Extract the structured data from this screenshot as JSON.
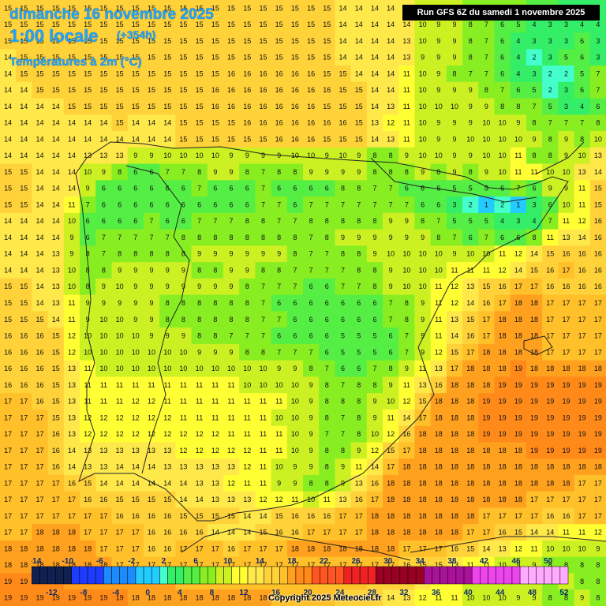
{
  "header": {
    "date": "dimanche 16 novembre 2025",
    "hour": "1:00 locale",
    "lead": "(+354h)",
    "variable": "Températures à 2m (°C)",
    "run": "Run GFS 6Z du samedi 1 novembre 2025"
  },
  "footer": {
    "copyright": "Copyright 2025 Meteociel.fr"
  },
  "map": {
    "region": "Iberian Peninsula",
    "grid_cols": 38,
    "grid_rows": 37,
    "grid_values": [
      "15 15 15 15 15 15 15 15 15 15 15 15 15 15 15 15 15 15 15 15 15 14 14 14 14 14 9 9 9 8 8 7 7 6 5 4 4 4",
      "15 15 15 15 15 15 15 15 15 15 15 15 15 15 15 15 15 15 15 15 15 14 14 14 14 14 10 9 9 8 7 6 5 4 3 3 4 4",
      "15 15 15 15 15 15 15 15 15 15 15 15 15 15 15 15 15 15 15 15 15 14 14 14 14 13 10 9 9 8 7 6 4 3 3 3 6 3",
      "14 15 15 15 15 15 15 15 15 15 15 15 15 15 15 15 15 15 15 15 15 14 14 14 14 13 9 9 9 8 7 6 4 2 3 5 6 3",
      "14 15 15 15 15 15 15 15 15 15 15 15 15 15 16 16 16 16 16 16 15 15 14 14 14 11 10 9 8 7 7 6 4 3 2 2 5 7",
      "14 14 15 15 15 15 15 15 15 15 15 15 15 16 16 16 16 16 16 16 16 15 15 14 14 11 10 9 9 9 8 7 6 5 2 3 6 7",
      "14 14 14 14 15 15 15 15 15 15 15 15 15 16 16 16 16 16 16 16 15 15 15 14 13 11 10 10 10 9 9 8 8 7 5 3 4 6",
      "14 14 14 14 14 14 14 15 14 14 14 15 15 15 15 16 16 16 16 16 16 16 15 13 12 11 10 9 9 9 10 10 9 8 7 7 7 8",
      "14 14 14 14 14 14 14 14 14 14 14 15 15 15 15 15 15 16 16 16 15 15 15 14 13 11 10 9 9 10 10 10 10 9 8 9 8 10",
      "14 14 14 14 14 13 13 13 9 9 10 10 10 10 9 9 9 9 10 10 9 10 9 8 8 9 10 10 9 9 10 10 11 8 8 9 10 13",
      "15 15 14 14 14 10 9 8 6 6 7 7 8 9 9 8 7 8 8 9 9 9 9 8 8 8 9 8 9 8 9 10 11 11 10 10 13 14",
      "15 15 14 14 14 9 6 6 6 6 6 6 7 6 6 6 7 6 6 6 6 8 8 7 7 6 6 6 5 5 5 6 7 6 9 9 11 15",
      "15 15 14 14 11 7 6 6 6 6 6 6 6 6 6 6 7 7 6 7 7 7 7 7 7 7 6 6 3 2 1 2 1 3 6 10 11 15",
      "14 14 14 14 10 6 6 6 6 7 6 6 7 7 7 8 8 7 7 8 8 8 8 8 9 9 8 7 5 5 5 4 3 4 7 11 12 16",
      "14 14 14 14 9 6 7 7 7 7 7 8 8 8 8 8 8 8 8 7 8 9 9 9 9 9 9 8 7 6 7 6 6 8 11 13 14 16",
      "14 14 14 13 9 8 7 8 8 8 8 8 9 9 9 9 9 9 8 7 7 8 8 9 10 10 10 10 9 10 10 11 12 14 15 16 16 16",
      "14 14 14 13 10 8 8 9 9 9 9 9 8 8 9 9 8 8 7 7 7 7 8 8 9 10 10 10 11 11 11 12 14 15 16 17 16 16",
      "15 15 14 13 10 8 9 10 9 9 9 9 9 9 9 8 7 7 7 6 6 7 7 8 9 10 10 11 12 13 15 16 17 17 16 16 16 16",
      "15 15 14 13 11 9 9 9 9 9 8 8 8 8 8 8 7 6 6 6 6 6 6 6 7 8 9 11 12 14 16 17 18 18 17 17 17 17",
      "15 15 15 14 11 9 10 10 9 9 8 8 8 8 8 8 7 7 6 6 6 6 6 6 7 8 9 11 13 15 17 18 18 18 17 17 17 17",
      "16 16 16 15 12 10 10 10 10 9 9 9 8 8 7 7 7 6 6 6 6 5 5 5 6 7 9 11 14 16 17 18 18 18 17 17 17 17",
      "16 16 16 15 12 10 10 10 10 10 10 10 9 9 9 8 8 7 7 7 6 5 5 5 6 7 9 12 15 17 18 18 18 18 17 17 17 17",
      "16 16 16 15 13 11 10 10 10 10 10 10 10 10 10 10 10 9 9 8 7 6 6 7 8 9 11 13 17 18 18 18 19 18 18 18 18 18",
      "16 16 16 15 13 11 11 11 11 11 11 11 11 11 11 10 10 10 10 9 8 7 8 8 9 11 13 16 18 18 18 19 19 19 19 19 19 19",
      "17 17 16 15 13 11 11 11 12 12 11 11 11 11 11 11 11 11 10 9 8 8 8 9 10 12 15 18 18 18 19 19 19 19 19 19 19 19",
      "17 17 17 15 13 12 12 12 12 12 12 11 11 11 11 11 11 10 10 9 8 7 8 9 11 14 17 18 18 18 19 19 19 19 19 19 19 19",
      "17 17 17 16 13 12 12 12 12 12 12 12 12 12 11 11 11 11 10 9 7 7 8 10 12 16 18 18 18 18 19 19 19 19 19 19 19 19",
      "17 17 17 16 14 13 13 13 13 13 13 12 12 12 12 12 11 11 10 9 8 8 9 12 15 17 18 18 18 18 18 18 18 19 19 19 19 19",
      "17 17 17 16 14 13 13 14 14 14 13 13 13 13 13 12 11 10 9 9 8 9 11 14 17 18 18 18 18 18 18 18 18 18 18 18 18 18",
      "17 17 17 17 16 15 14 14 14 14 14 14 13 13 12 11 11 9 9 8 8 9 13 16 18 18 18 18 18 18 18 18 18 18 18 18 17 17",
      "17 17 17 17 17 16 16 15 15 15 15 14 14 13 13 13 12 12 11 10 11 13 16 17 18 18 18 18 18 18 18 18 18 17 17 17 17 17",
      "17 17 17 17 17 17 17 16 16 16 16 15 15 15 15 14 14 15 16 16 16 17 17 18 18 18 18 18 18 18 17 17 17 17 16 16 17 17",
      "17 17 18 18 18 17 17 17 17 16 16 16 16 14 14 14 15 16 16 17 17 17 17 18 18 18 18 18 18 17 17 16 15 14 14 11 11 12",
      "18 18 18 18 18 18 17 17 17 16 16 17 17 17 16 17 17 17 18 18 18 18 18 18 18 17 17 17 16 15 14 13 12 11 10 10 10 9",
      "18 18 18 18 18 18 18 17 17 17 17 17 17 17 17 17 17 17 17 17 17 17 17 17 17 16 15 15 13 11 11 10 9 9 8 8 8 8",
      "19 19 19 19 18 18 18 18 18 18 18 17 17 17 17 17 17 17 17 17 17 17 17 16 15 15 14 12 11 10 10 10 9 9 8 9 8 8",
      "19 19 19 19 19 19 19 19 18 18 18 18 18 18 18 18 18 17 17 17 17 16 16 15 14 13 12 11 11 10 10 10 9 9 8 8 9 8"
    ]
  },
  "legend": {
    "stops": [
      -14,
      -13,
      -12,
      -11,
      -10,
      -9,
      -8,
      -7,
      -6,
      -5,
      -4,
      -3,
      -2,
      -1,
      0,
      1,
      2,
      3,
      4,
      5,
      6,
      7,
      8,
      9,
      10,
      11,
      12,
      13,
      14,
      15,
      16,
      17,
      18,
      19,
      20,
      21,
      22,
      23,
      24,
      25,
      26,
      27,
      28,
      29,
      30,
      31,
      32,
      33,
      34,
      35,
      36,
      37,
      38,
      39,
      40,
      41,
      42,
      43,
      44,
      45,
      46,
      47,
      48,
      49,
      50,
      51,
      52
    ],
    "top_labels": [
      "-14",
      "-10",
      "-6",
      "-2",
      "2",
      "6",
      "10",
      "14",
      "18",
      "22",
      "26",
      "30",
      "34",
      "38",
      "42",
      "46",
      "50"
    ],
    "bottom_labels": [
      "-12",
      "-8",
      "-4",
      "0",
      "4",
      "8",
      "12",
      "16",
      "20",
      "24",
      "28",
      "32",
      "36",
      "40",
      "44",
      "48",
      "52"
    ],
    "colors": {
      "cold": "#102050",
      "blue": "#1e3cff",
      "cyan": "#22ccff",
      "green": "#33ee44",
      "lime": "#aaee22",
      "yellow": "#ffff33",
      "gold": "#ffc02a",
      "orange": "#ff9a1a",
      "red": "#ee2222",
      "darkred": "#990022",
      "purple": "#aa1199",
      "pink": "#ffaaff"
    }
  }
}
